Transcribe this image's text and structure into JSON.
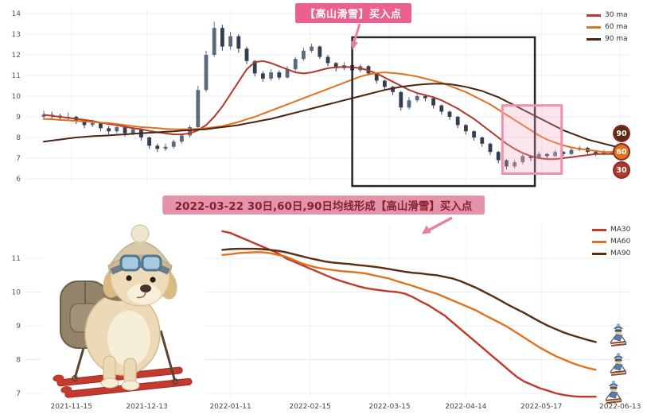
{
  "top_chart": {
    "y_ticks": [
      "14",
      "13",
      "12",
      "11",
      "10",
      "9",
      "8",
      "7",
      "6"
    ],
    "legend": [
      {
        "label": "30 ma",
        "color": "#b03a2e"
      },
      {
        "label": "60 ma",
        "color": "#e2711d"
      },
      {
        "label": "90 ma",
        "color": "#4a2511"
      }
    ],
    "annotation": {
      "text": "【高山滑雪】买入点",
      "bg": "#ec6090",
      "text_color": "#ffffff"
    },
    "badges": [
      {
        "label": "90",
        "color": "#5a2b12"
      },
      {
        "label": "60",
        "color": "#e2711d"
      },
      {
        "label": "30",
        "color": "#b03a2e"
      }
    ]
  },
  "banner": {
    "text": "2022-03-22 30日,60日,90日均线形成【高山滑雪】买入点",
    "bg": "#e494aa",
    "text_color": "#8a1f33"
  },
  "bottom_chart": {
    "y_ticks": [
      "11",
      "10",
      "9",
      "8",
      "7"
    ],
    "legend": [
      {
        "label": "MA30",
        "color": "#c0392b"
      },
      {
        "label": "MA60",
        "color": "#e2711d"
      },
      {
        "label": "MA90",
        "color": "#5b2c0f"
      }
    ]
  },
  "x_axis": {
    "ticks": [
      {
        "label": "2021-11-15",
        "i": 3.4
      },
      {
        "label": "2021-12-13",
        "i": 12.7
      },
      {
        "label": "2022-01-11",
        "i": 23
      },
      {
        "label": "2022-02-15",
        "i": 32.8
      },
      {
        "label": "2022-03-15",
        "i": 42.6
      },
      {
        "label": "2022-04-14",
        "i": 52
      },
      {
        "label": "2022-05-17",
        "i": 61.3
      },
      {
        "label": "2022-06-13",
        "i": 71
      }
    ]
  },
  "chart_data": [
    {
      "type": "candlestick",
      "title": "",
      "ylim": [
        6,
        14
      ],
      "y_ticks": [
        6,
        7,
        8,
        9,
        10,
        11,
        12,
        13,
        14
      ],
      "grid": true,
      "legend_position": "top-right",
      "candle_up_color": "#5a6a7d",
      "candle_down_color": "#323f52",
      "candles": [
        [
          9.0,
          9.3,
          8.85,
          9.1
        ],
        [
          9.1,
          9.25,
          8.9,
          9.05
        ],
        [
          9.05,
          9.15,
          8.8,
          8.95
        ],
        [
          8.95,
          9.2,
          8.85,
          9.0
        ],
        [
          9.0,
          9.05,
          8.65,
          8.8
        ],
        [
          8.8,
          8.9,
          8.45,
          8.6
        ],
        [
          8.6,
          8.85,
          8.5,
          8.7
        ],
        [
          8.7,
          8.75,
          8.3,
          8.45
        ],
        [
          8.45,
          8.55,
          8.15,
          8.3
        ],
        [
          8.3,
          8.6,
          8.2,
          8.5
        ],
        [
          8.5,
          8.55,
          8.05,
          8.2
        ],
        [
          8.2,
          8.5,
          8.1,
          8.4
        ],
        [
          8.4,
          8.45,
          7.85,
          8.0
        ],
        [
          8.0,
          8.05,
          7.45,
          7.6
        ],
        [
          7.6,
          7.7,
          7.3,
          7.45
        ],
        [
          7.45,
          7.7,
          7.35,
          7.55
        ],
        [
          7.55,
          7.9,
          7.45,
          7.8
        ],
        [
          7.8,
          8.2,
          7.7,
          8.1
        ],
        [
          8.1,
          8.6,
          8.0,
          8.5
        ],
        [
          8.5,
          10.5,
          8.45,
          10.3
        ],
        [
          10.3,
          12.2,
          10.2,
          12.0
        ],
        [
          12.0,
          13.6,
          11.9,
          13.3
        ],
        [
          13.3,
          13.45,
          12.2,
          12.4
        ],
        [
          12.4,
          13.1,
          12.25,
          12.9
        ],
        [
          12.9,
          13.0,
          12.1,
          12.3
        ],
        [
          12.3,
          12.4,
          11.55,
          11.7
        ],
        [
          11.7,
          11.75,
          10.95,
          11.1
        ],
        [
          11.1,
          11.2,
          10.7,
          10.85
        ],
        [
          10.85,
          11.3,
          10.75,
          11.15
        ],
        [
          11.15,
          11.25,
          10.8,
          10.9
        ],
        [
          10.9,
          11.45,
          10.85,
          11.3
        ],
        [
          11.3,
          11.9,
          11.2,
          11.8
        ],
        [
          11.8,
          12.35,
          11.7,
          12.2
        ],
        [
          12.2,
          12.55,
          12.1,
          12.4
        ],
        [
          12.4,
          12.45,
          11.8,
          11.9
        ],
        [
          11.9,
          12.0,
          11.45,
          11.6
        ],
        [
          11.6,
          11.65,
          11.2,
          11.35
        ],
        [
          11.35,
          11.65,
          11.25,
          11.5
        ],
        [
          11.5,
          11.55,
          11.1,
          11.25
        ],
        [
          11.25,
          11.55,
          11.15,
          11.45
        ],
        [
          11.45,
          11.5,
          11.0,
          11.1
        ],
        [
          11.1,
          11.15,
          10.6,
          10.75
        ],
        [
          10.75,
          10.8,
          10.3,
          10.45
        ],
        [
          10.45,
          10.5,
          10.05,
          10.2
        ],
        [
          10.2,
          10.25,
          9.3,
          9.45
        ],
        [
          9.45,
          9.95,
          9.35,
          9.8
        ],
        [
          9.8,
          10.1,
          9.7,
          10.0
        ],
        [
          10.0,
          10.1,
          9.75,
          9.9
        ],
        [
          9.9,
          9.95,
          9.4,
          9.55
        ],
        [
          9.55,
          9.6,
          9.1,
          9.25
        ],
        [
          9.25,
          9.3,
          8.85,
          9.0
        ],
        [
          9.0,
          9.05,
          8.45,
          8.6
        ],
        [
          8.6,
          8.65,
          8.15,
          8.3
        ],
        [
          8.3,
          8.35,
          7.85,
          8.0
        ],
        [
          8.0,
          8.05,
          7.55,
          7.7
        ],
        [
          7.7,
          7.75,
          7.15,
          7.3
        ],
        [
          7.3,
          7.35,
          6.75,
          6.9
        ],
        [
          6.9,
          6.95,
          6.45,
          6.6
        ],
        [
          6.6,
          6.9,
          6.5,
          6.8
        ],
        [
          6.8,
          7.2,
          6.7,
          7.1
        ],
        [
          7.1,
          7.15,
          6.85,
          7.0
        ],
        [
          7.0,
          7.3,
          6.95,
          7.2
        ],
        [
          7.2,
          7.25,
          7.0,
          7.1
        ],
        [
          7.1,
          7.4,
          7.05,
          7.3
        ],
        [
          7.3,
          7.35,
          7.1,
          7.2
        ],
        [
          7.2,
          7.5,
          7.15,
          7.4
        ],
        [
          7.4,
          7.6,
          7.35,
          7.5
        ],
        [
          7.5,
          7.55,
          7.2,
          7.3
        ],
        [
          7.3,
          7.35,
          7.1,
          7.2
        ],
        [
          7.2,
          7.4,
          7.15,
          7.3
        ],
        [
          7.3,
          7.35,
          7.15,
          7.25
        ],
        [
          7.25,
          7.3,
          7.1,
          7.2
        ]
      ],
      "series": [
        {
          "name": "30 ma",
          "color": "#b03a2e",
          "values": [
            9.1,
            9.05,
            9.0,
            8.95,
            8.9,
            8.85,
            8.8,
            8.72,
            8.65,
            8.6,
            8.52,
            8.45,
            8.4,
            8.32,
            8.25,
            8.2,
            8.15,
            8.15,
            8.2,
            8.35,
            8.6,
            9.0,
            9.5,
            10.1,
            10.7,
            11.3,
            11.65,
            11.7,
            11.6,
            11.45,
            11.3,
            11.15,
            11.1,
            11.15,
            11.25,
            11.35,
            11.4,
            11.42,
            11.4,
            11.35,
            11.25,
            11.1,
            10.9,
            10.7,
            10.5,
            10.3,
            10.15,
            10.05,
            9.95,
            9.8,
            9.6,
            9.4,
            9.15,
            8.9,
            8.6,
            8.3,
            8.0,
            7.7,
            7.45,
            7.25,
            7.1,
            7.0,
            6.95,
            6.95,
            7.0,
            7.05,
            7.1,
            7.15,
            7.2,
            7.2,
            7.2,
            7.2
          ]
        },
        {
          "name": "60 ma",
          "color": "#e2711d",
          "values": [
            8.9,
            8.88,
            8.85,
            8.83,
            8.8,
            8.78,
            8.75,
            8.72,
            8.7,
            8.65,
            8.6,
            8.55,
            8.5,
            8.48,
            8.45,
            8.42,
            8.4,
            8.4,
            8.4,
            8.42,
            8.45,
            8.5,
            8.55,
            8.65,
            8.75,
            8.88,
            9.0,
            9.15,
            9.3,
            9.45,
            9.6,
            9.75,
            9.9,
            10.05,
            10.2,
            10.35,
            10.5,
            10.65,
            10.8,
            10.95,
            11.05,
            11.12,
            11.15,
            11.12,
            11.08,
            11.02,
            10.95,
            10.85,
            10.75,
            10.65,
            10.5,
            10.35,
            10.2,
            10.0,
            9.8,
            9.6,
            9.35,
            9.1,
            8.85,
            8.6,
            8.35,
            8.1,
            7.9,
            7.75,
            7.62,
            7.52,
            7.45,
            7.4,
            7.35,
            7.3,
            7.3,
            7.25
          ]
        },
        {
          "name": "90 ma",
          "color": "#4a2511",
          "values": [
            7.8,
            7.85,
            7.9,
            7.95,
            8.0,
            8.03,
            8.06,
            8.08,
            8.1,
            8.13,
            8.15,
            8.18,
            8.2,
            8.23,
            8.25,
            8.28,
            8.3,
            8.33,
            8.35,
            8.38,
            8.4,
            8.45,
            8.5,
            8.55,
            8.6,
            8.68,
            8.75,
            8.83,
            8.9,
            9.0,
            9.1,
            9.2,
            9.3,
            9.4,
            9.5,
            9.6,
            9.7,
            9.8,
            9.9,
            10.0,
            10.1,
            10.2,
            10.3,
            10.38,
            10.45,
            10.5,
            10.55,
            10.58,
            10.6,
            10.6,
            10.58,
            10.52,
            10.45,
            10.35,
            10.25,
            10.1,
            9.95,
            9.75,
            9.55,
            9.35,
            9.15,
            8.95,
            8.75,
            8.55,
            8.35,
            8.2,
            8.05,
            7.9,
            7.8,
            7.7,
            7.6,
            7.5
          ]
        }
      ],
      "annotations": {
        "buy_label": "【高山滑雪】买入点",
        "dark_box": {
          "i0": 38,
          "i1": 60.5,
          "p0": 5.65,
          "p1": 12.85
        },
        "pink_box": {
          "i0": 56.5,
          "i1": 63.8,
          "p0": 6.25,
          "p1": 9.55
        }
      }
    },
    {
      "type": "line",
      "title": "",
      "ylim": [
        6.6,
        12
      ],
      "y_ticks": [
        7,
        8,
        9,
        10,
        11
      ],
      "grid": true,
      "legend_position": "top-right",
      "i_range": [
        22,
        68
      ],
      "series": [
        {
          "name": "MA30",
          "color": "#c0392b",
          "values": [
            11.8,
            11.75,
            11.65,
            11.55,
            11.45,
            11.35,
            11.25,
            11.15,
            11.0,
            10.9,
            10.8,
            10.7,
            10.6,
            10.5,
            10.4,
            10.32,
            10.25,
            10.18,
            10.12,
            10.08,
            10.05,
            10.02,
            10.0,
            9.95,
            9.85,
            9.72,
            9.6,
            9.45,
            9.3,
            9.1,
            8.9,
            8.7,
            8.5,
            8.3,
            8.1,
            7.9,
            7.7,
            7.5,
            7.35,
            7.25,
            7.15,
            7.08,
            7.0,
            6.95,
            6.92,
            6.9,
            6.9,
            6.9
          ]
        },
        {
          "name": "MA60",
          "color": "#e2711d",
          "values": [
            11.1,
            11.12,
            11.15,
            11.17,
            11.18,
            11.18,
            11.15,
            11.1,
            11.05,
            10.95,
            10.85,
            10.78,
            10.72,
            10.68,
            10.65,
            10.62,
            10.6,
            10.58,
            10.55,
            10.5,
            10.45,
            10.4,
            10.32,
            10.25,
            10.18,
            10.1,
            10.02,
            9.95,
            9.85,
            9.75,
            9.65,
            9.55,
            9.45,
            9.32,
            9.2,
            9.08,
            8.95,
            8.8,
            8.65,
            8.5,
            8.35,
            8.22,
            8.1,
            8.0,
            7.9,
            7.82,
            7.75,
            7.7
          ]
        },
        {
          "name": "MA90",
          "color": "#5b2c0f",
          "values": [
            11.25,
            11.27,
            11.28,
            11.28,
            11.28,
            11.27,
            11.25,
            11.22,
            11.18,
            11.12,
            11.06,
            11.0,
            10.95,
            10.9,
            10.87,
            10.85,
            10.83,
            10.8,
            10.78,
            10.75,
            10.72,
            10.68,
            10.64,
            10.6,
            10.57,
            10.55,
            10.52,
            10.5,
            10.45,
            10.4,
            10.32,
            10.22,
            10.12,
            10.0,
            9.88,
            9.75,
            9.62,
            9.5,
            9.38,
            9.25,
            9.12,
            9.0,
            8.9,
            8.8,
            8.72,
            8.65,
            8.58,
            8.52
          ]
        }
      ]
    }
  ]
}
